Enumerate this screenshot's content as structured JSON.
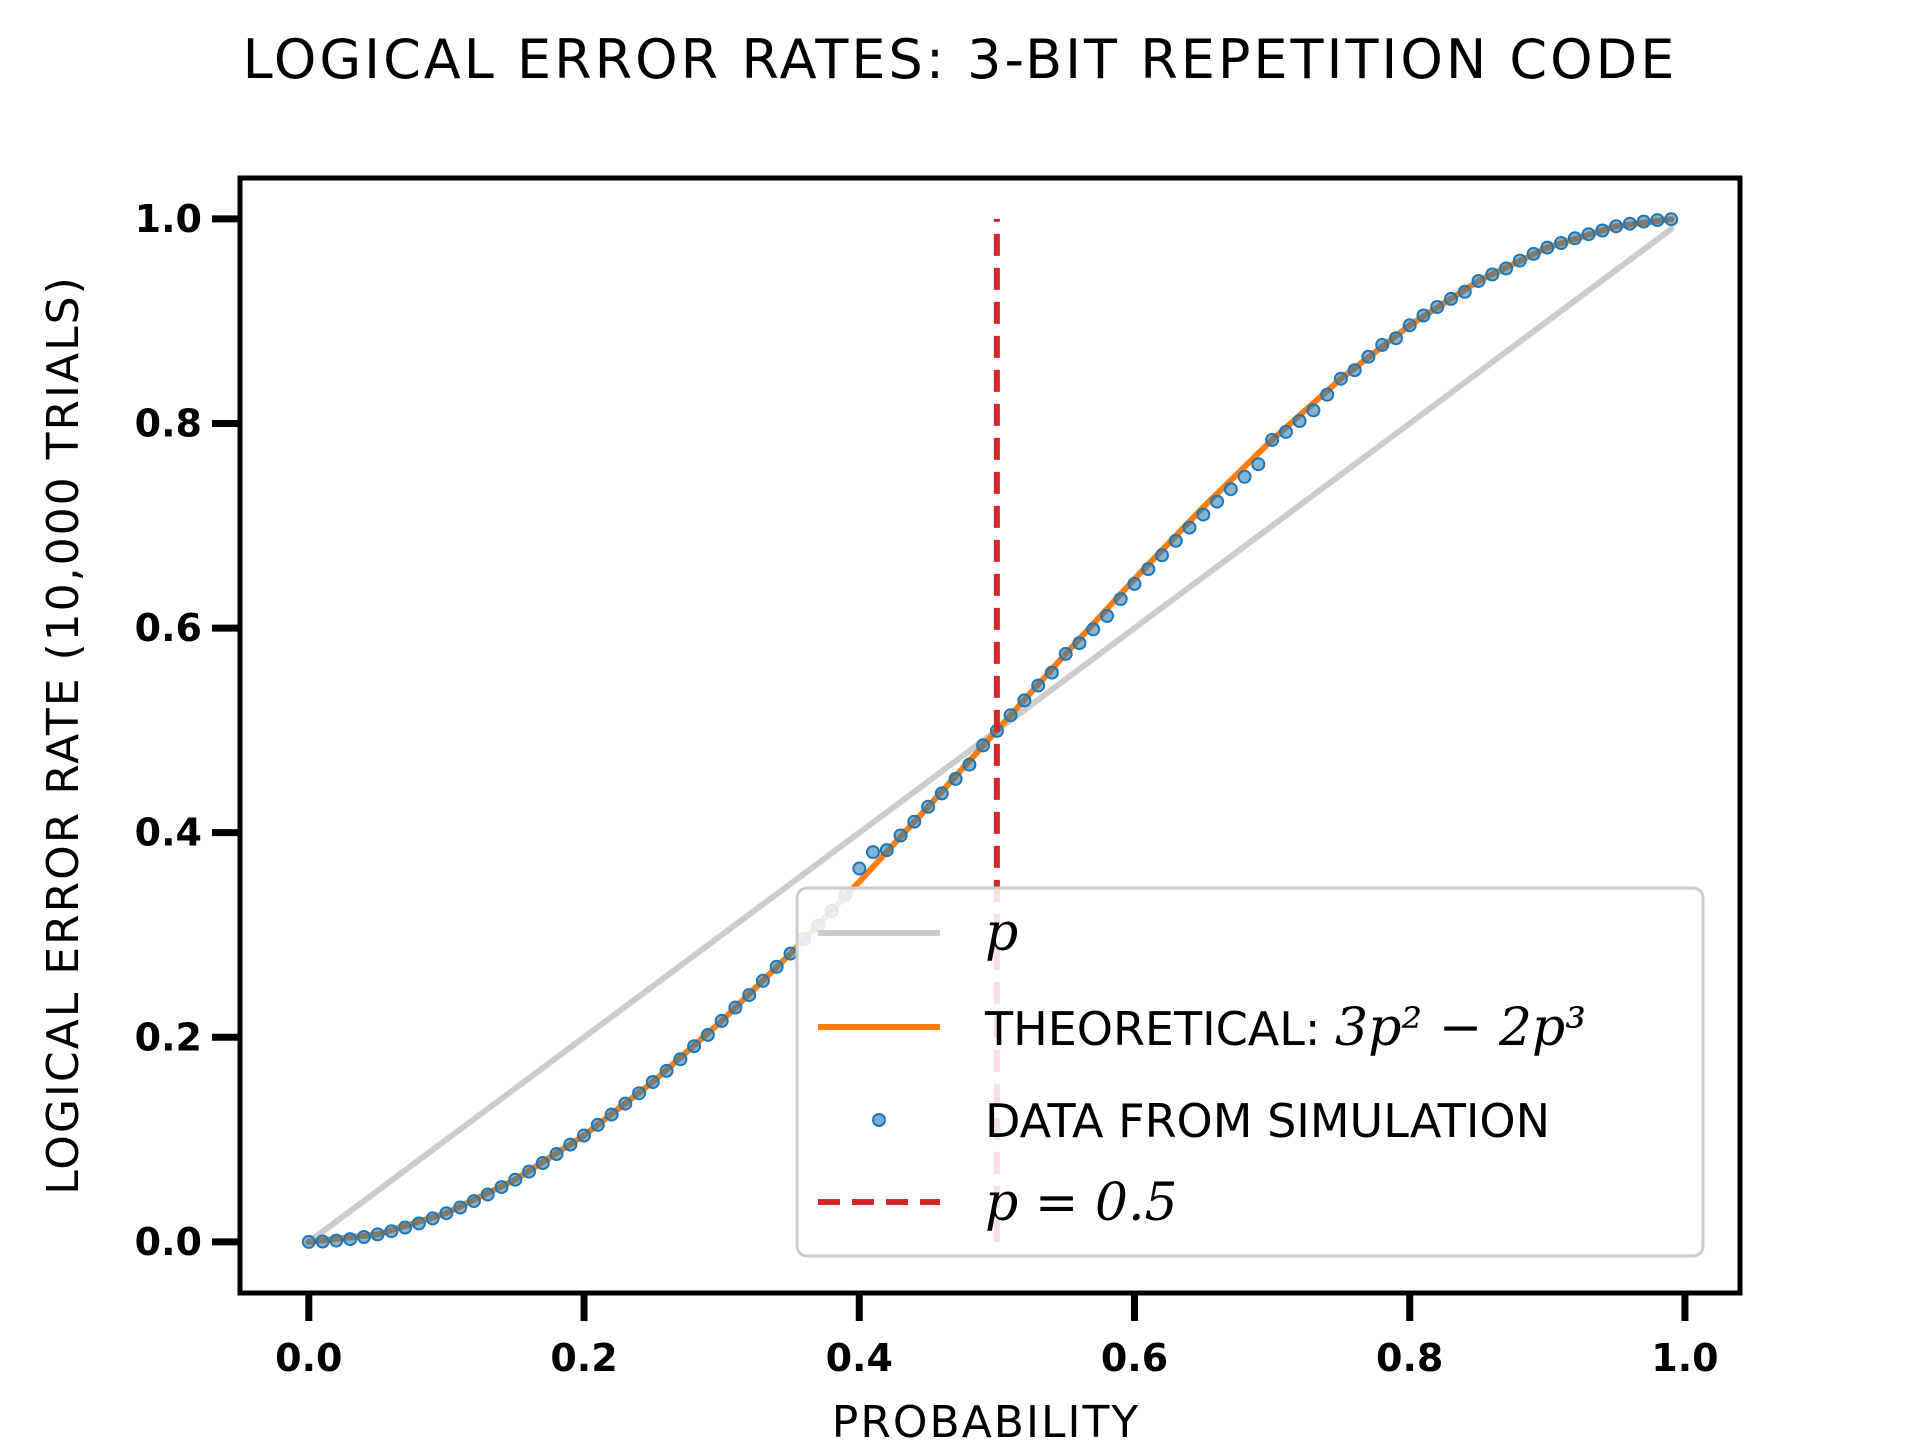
{
  "chart_data": {
    "type": "line",
    "title": "LOGICAL ERROR RATES: 3-BIT REPETITION CODE",
    "xlabel": "PROBABILITY",
    "ylabel": "LOGICAL ERROR RATE (10,000 TRIALS)",
    "xlim": [
      -0.05,
      1.04
    ],
    "ylim": [
      -0.05,
      1.04
    ],
    "xticks": [
      0.0,
      0.2,
      0.4,
      0.6,
      0.8,
      1.0
    ],
    "yticks": [
      0.0,
      0.2,
      0.4,
      0.6,
      0.8,
      1.0
    ],
    "xtick_labels": [
      "0.0",
      "0.2",
      "0.4",
      "0.6",
      "0.8",
      "1.0"
    ],
    "ytick_labels": [
      "0.0",
      "0.2",
      "0.4",
      "0.6",
      "0.8",
      "1.0"
    ],
    "grid": false,
    "legend_position": "lower-right",
    "series": [
      {
        "name": "p",
        "kind": "line",
        "color": "#cccccc",
        "x": [
          0.0,
          0.1,
          0.2,
          0.3,
          0.4,
          0.5,
          0.6,
          0.7,
          0.8,
          0.9,
          0.99
        ],
        "y": [
          0.0,
          0.1,
          0.2,
          0.3,
          0.4,
          0.5,
          0.6,
          0.7,
          0.8,
          0.9,
          0.99
        ]
      },
      {
        "name": "THEORETICAL: 3p² − 2p³",
        "kind": "line",
        "color": "#ff7f0e",
        "x": [
          0.0,
          0.05,
          0.1,
          0.15,
          0.2,
          0.25,
          0.3,
          0.35,
          0.4,
          0.45,
          0.5,
          0.55,
          0.6,
          0.65,
          0.7,
          0.75,
          0.8,
          0.85,
          0.9,
          0.95,
          0.99
        ],
        "y": [
          0.0,
          0.0073,
          0.028,
          0.0608,
          0.104,
          0.1563,
          0.216,
          0.2818,
          0.352,
          0.4253,
          0.5,
          0.5748,
          0.648,
          0.7183,
          0.784,
          0.8438,
          0.896,
          0.9393,
          0.972,
          0.9928,
          0.9997
        ]
      },
      {
        "name": "DATA FROM SIMULATION",
        "kind": "scatter",
        "color": "#1f77b4",
        "x": [
          0.0,
          0.01,
          0.02,
          0.03,
          0.04,
          0.05,
          0.06,
          0.07,
          0.08,
          0.09,
          0.1,
          0.11,
          0.12,
          0.13,
          0.14,
          0.15,
          0.16,
          0.17,
          0.18,
          0.19,
          0.2,
          0.21,
          0.22,
          0.23,
          0.24,
          0.25,
          0.26,
          0.27,
          0.28,
          0.29,
          0.3,
          0.31,
          0.32,
          0.33,
          0.34,
          0.35,
          0.36,
          0.37,
          0.38,
          0.39,
          0.4,
          0.41,
          0.42,
          0.43,
          0.44,
          0.45,
          0.46,
          0.47,
          0.48,
          0.49,
          0.5,
          0.51,
          0.52,
          0.53,
          0.54,
          0.55,
          0.56,
          0.57,
          0.58,
          0.59,
          0.6,
          0.61,
          0.62,
          0.63,
          0.64,
          0.65,
          0.66,
          0.67,
          0.68,
          0.69,
          0.7,
          0.71,
          0.72,
          0.73,
          0.74,
          0.75,
          0.76,
          0.77,
          0.78,
          0.79,
          0.8,
          0.81,
          0.82,
          0.83,
          0.84,
          0.85,
          0.86,
          0.87,
          0.88,
          0.89,
          0.9,
          0.91,
          0.92,
          0.93,
          0.94,
          0.95,
          0.96,
          0.97,
          0.98,
          0.99
        ],
        "y": [
          0.0,
          0.0003,
          0.0012,
          0.0027,
          0.0047,
          0.0073,
          0.0104,
          0.014,
          0.018,
          0.0229,
          0.028,
          0.0336,
          0.0398,
          0.0463,
          0.0535,
          0.0608,
          0.0687,
          0.0771,
          0.0859,
          0.0951,
          0.104,
          0.1144,
          0.1244,
          0.1352,
          0.1453,
          0.1563,
          0.1671,
          0.1786,
          0.1913,
          0.2023,
          0.216,
          0.2291,
          0.2412,
          0.2552,
          0.2689,
          0.2818,
          0.2961,
          0.3089,
          0.3234,
          0.3393,
          0.365,
          0.381,
          0.383,
          0.3972,
          0.4107,
          0.4253,
          0.4384,
          0.4526,
          0.4666,
          0.4853,
          0.4995,
          0.5148,
          0.5293,
          0.5438,
          0.5565,
          0.5748,
          0.5853,
          0.5988,
          0.6119,
          0.6283,
          0.6432,
          0.6577,
          0.6712,
          0.6853,
          0.6982,
          0.7109,
          0.7237,
          0.7358,
          0.7479,
          0.7602,
          0.784,
          0.7918,
          0.8024,
          0.8129,
          0.8282,
          0.8438,
          0.8521,
          0.8652,
          0.8768,
          0.8834,
          0.896,
          0.9056,
          0.9139,
          0.9218,
          0.9288,
          0.9393,
          0.9457,
          0.9516,
          0.9593,
          0.9658,
          0.972,
          0.9765,
          0.9811,
          0.9851,
          0.9887,
          0.9928,
          0.9953,
          0.9974,
          0.9988,
          0.9997
        ]
      },
      {
        "name": "p = 0.5",
        "kind": "vline",
        "color": "#d62728",
        "x": [
          0.5,
          0.5
        ],
        "y": [
          0.0,
          1.0
        ]
      }
    ],
    "legend": {
      "p_label": "p",
      "theory_label": "THEORETICAL: ",
      "theory_formula": "3p² − 2p³",
      "sim_label": "DATA FROM SIMULATION",
      "vline_label": "p = 0.5"
    }
  }
}
